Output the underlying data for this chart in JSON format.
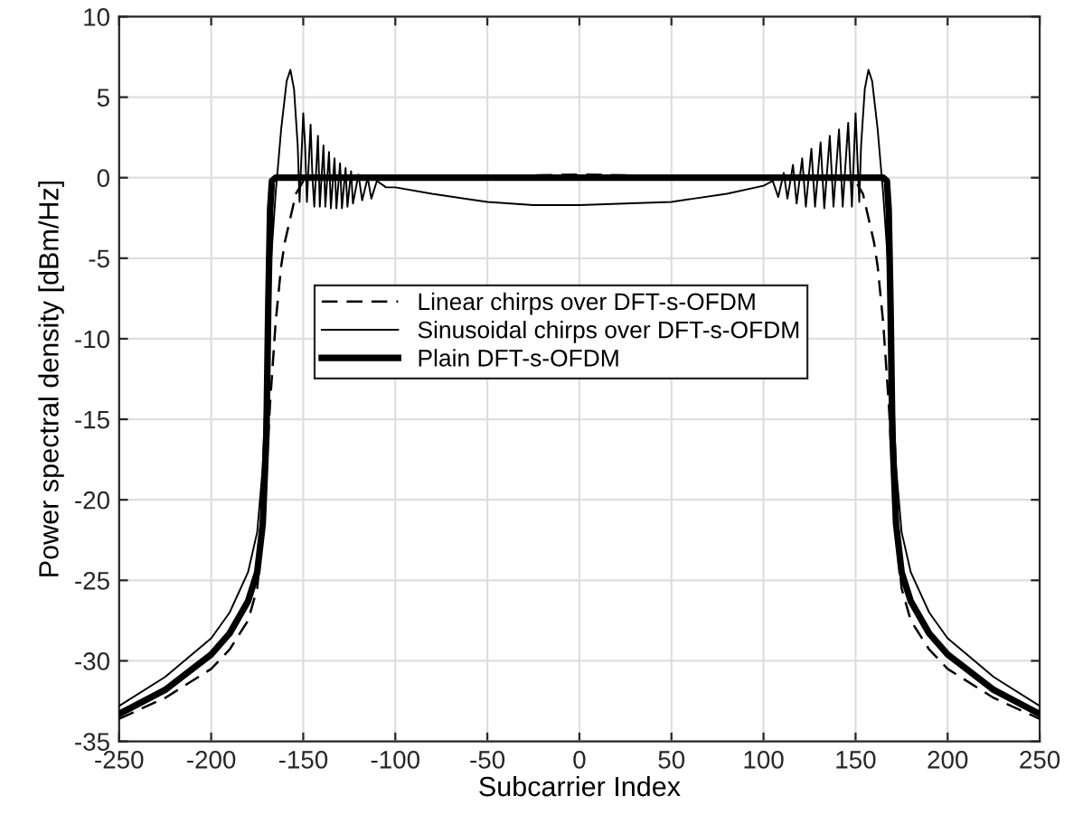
{
  "chart_data": {
    "type": "line",
    "xlabel": "Subcarrier Index",
    "ylabel": "Power spectral density [dBm/Hz]",
    "xlim": [
      -250,
      250
    ],
    "ylim": [
      -35,
      10
    ],
    "xticks": [
      -250,
      -200,
      -150,
      -100,
      -50,
      0,
      50,
      100,
      150,
      200,
      250
    ],
    "yticks": [
      -35,
      -30,
      -25,
      -20,
      -15,
      -10,
      -5,
      0,
      5,
      10
    ],
    "grid": true,
    "legend": "center",
    "marker": "none",
    "series": [
      {
        "name": "Linear chirps over DFT-s-OFDM",
        "color": "#000000",
        "line_style": "dashed",
        "x": [
          -250,
          -225,
          -200,
          -190,
          -180,
          -175,
          -172,
          -170,
          -168,
          -165,
          -162,
          -160,
          -157,
          -154,
          -150,
          -140,
          -120,
          -100,
          -50,
          0,
          50,
          100,
          120,
          140,
          150,
          154,
          157,
          160,
          162,
          165,
          168,
          170,
          172,
          175,
          180,
          190,
          200,
          225,
          250
        ],
        "values": [
          -33.6,
          -32.3,
          -30.5,
          -29.3,
          -27.5,
          -25.5,
          -22,
          -18,
          -14,
          -9,
          -5.5,
          -4,
          -2.5,
          -1,
          -0.2,
          0,
          0.1,
          0,
          0.1,
          0.2,
          0.1,
          0,
          0.1,
          0,
          -0.2,
          -1,
          -2.5,
          -4,
          -5.5,
          -9,
          -14,
          -18,
          -22,
          -25.5,
          -27.5,
          -29.3,
          -30.5,
          -32.3,
          -33.6
        ]
      },
      {
        "name": "Sinusoidal chirps over DFT-s-OFDM",
        "color": "#000000",
        "line_style": "solid",
        "x": [
          -250,
          -225,
          -200,
          -190,
          -180,
          -175,
          -172,
          -170,
          -168,
          -165,
          -162,
          -159,
          -157,
          -155,
          -153,
          -152,
          -150,
          -149,
          -148,
          -146,
          -145,
          -144,
          -142,
          -141,
          -139,
          -138,
          -136,
          -135,
          -133,
          -132,
          -130,
          -129,
          -127,
          -126,
          -124,
          -123,
          -120,
          -118,
          -115,
          -113,
          -110,
          -105,
          -100,
          -80,
          -50,
          -25,
          0,
          25,
          50,
          80,
          100,
          105,
          108,
          111,
          113,
          116,
          118,
          121,
          123,
          126,
          128,
          131,
          133,
          136,
          138,
          141,
          143,
          146,
          148,
          150,
          152,
          153,
          155,
          157,
          159,
          162,
          165,
          168,
          170,
          172,
          175,
          180,
          190,
          200,
          225,
          250
        ],
        "values": [
          -32.8,
          -31,
          -28.6,
          -27,
          -24.5,
          -22,
          -18,
          -12,
          -6,
          -1,
          3,
          6.0,
          6.7,
          5.5,
          2,
          -1.5,
          4.0,
          2,
          -1.5,
          3.3,
          0,
          -1.8,
          2.6,
          -1.8,
          2.0,
          -1.8,
          1.6,
          -1.9,
          1.2,
          -1.9,
          0.9,
          -1.9,
          0.6,
          -1.8,
          0.4,
          -1.6,
          0.2,
          -1.4,
          0,
          -1.3,
          -0.2,
          -0.6,
          -0.6,
          -1.0,
          -1.5,
          -1.7,
          -1.7,
          -1.6,
          -1.5,
          -1.0,
          -0.5,
          -0.2,
          -1.2,
          0.3,
          -1.3,
          0.8,
          -1.6,
          1.2,
          -1.8,
          1.8,
          -1.8,
          2.2,
          -1.9,
          2.6,
          -1.8,
          3.0,
          -1.8,
          3.4,
          -1.8,
          4.0,
          -1.5,
          2,
          5.5,
          6.7,
          6.0,
          3,
          -1,
          -6,
          -12,
          -18,
          -22,
          -24.5,
          -27,
          -28.6,
          -31,
          -32.8
        ]
      },
      {
        "name": "Plain DFT-s-OFDM",
        "color": "#000000",
        "line_style": "solid",
        "x": [
          -250,
          -225,
          -200,
          -190,
          -180,
          -175,
          -172,
          -170,
          -169,
          -168,
          -167,
          -165,
          0,
          165,
          167,
          168,
          169,
          170,
          172,
          175,
          180,
          190,
          200,
          225,
          250
        ],
        "values": [
          -33.3,
          -31.8,
          -29.6,
          -28.3,
          -26.3,
          -24.5,
          -21.5,
          -16,
          -8,
          -2,
          -0.2,
          0,
          0,
          0,
          -0.2,
          -2,
          -8,
          -16,
          -21.5,
          -24.5,
          -26.3,
          -28.3,
          -29.6,
          -31.8,
          -33.3
        ]
      }
    ]
  }
}
